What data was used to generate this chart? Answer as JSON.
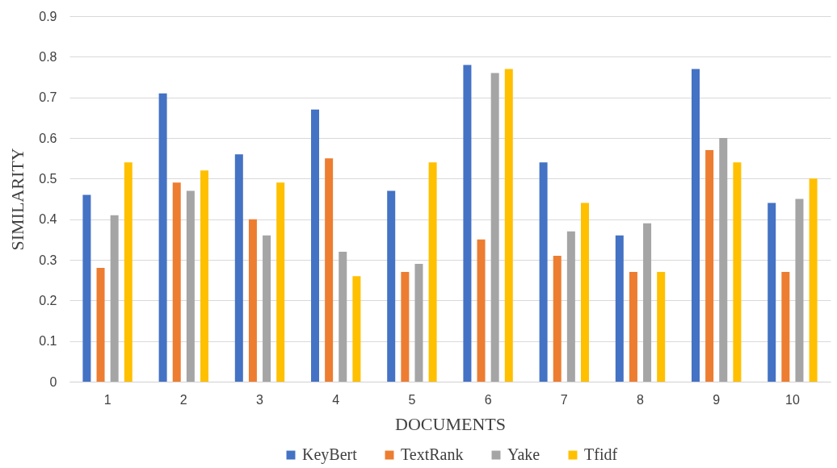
{
  "chart_data": {
    "type": "bar",
    "xlabel": "DOCUMENTS",
    "ylabel": "SIMILARITY",
    "categories": [
      "1",
      "2",
      "3",
      "4",
      "5",
      "6",
      "7",
      "8",
      "9",
      "10"
    ],
    "series": [
      {
        "name": "KeyBert",
        "color": "#4472c4",
        "values": [
          0.46,
          0.71,
          0.56,
          0.67,
          0.47,
          0.78,
          0.54,
          0.36,
          0.77,
          0.44
        ]
      },
      {
        "name": "TextRank",
        "color": "#ed7d31",
        "values": [
          0.28,
          0.49,
          0.4,
          0.55,
          0.27,
          0.35,
          0.31,
          0.27,
          0.57,
          0.27
        ]
      },
      {
        "name": "Yake",
        "color": "#a5a5a5",
        "values": [
          0.41,
          0.47,
          0.36,
          0.32,
          0.29,
          0.76,
          0.37,
          0.39,
          0.6,
          0.45
        ]
      },
      {
        "name": "Tfidf",
        "color": "#ffc000",
        "values": [
          0.54,
          0.52,
          0.49,
          0.26,
          0.54,
          0.77,
          0.44,
          0.27,
          0.54,
          0.5
        ]
      }
    ],
    "ylim": [
      0,
      0.9
    ],
    "yticks": [
      0,
      0.1,
      0.2,
      0.3,
      0.4,
      0.5,
      0.6,
      0.7,
      0.8,
      0.9
    ],
    "grid": "y",
    "legend": "bottom"
  }
}
